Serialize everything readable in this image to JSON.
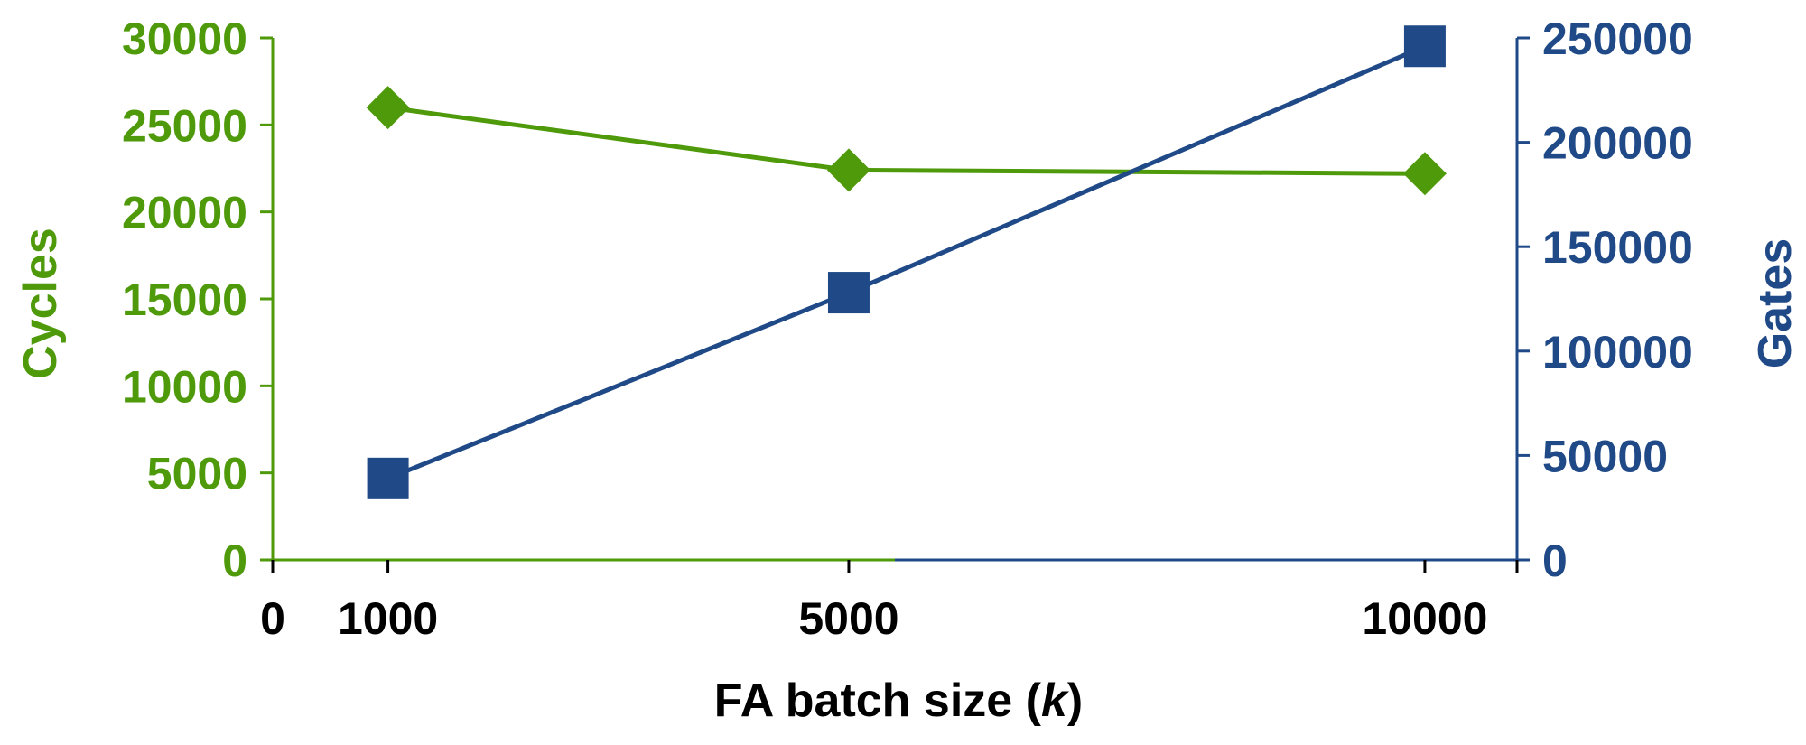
{
  "chart_data": {
    "type": "line",
    "title": "",
    "xlabel": "FA batch size (",
    "xlabel_var": "k",
    "xlabel_close": ")",
    "x_ticks": [
      "0",
      "1000",
      "5000",
      "10000"
    ],
    "x_tick_values": [
      0,
      1000,
      5000,
      10000
    ],
    "xlim": [
      0,
      10800
    ],
    "left_axis": {
      "label": "Cycles",
      "ylim": [
        0,
        30000
      ],
      "ticks": [
        "0",
        "5000",
        "10000",
        "15000",
        "20000",
        "25000",
        "30000"
      ],
      "tick_values": [
        0,
        5000,
        10000,
        15000,
        20000,
        25000,
        30000
      ],
      "color": "#4e9a0a"
    },
    "right_axis": {
      "label": "Gates",
      "ylim": [
        0,
        250000
      ],
      "ticks": [
        "0",
        "50000",
        "100000",
        "150000",
        "200000",
        "250000"
      ],
      "tick_values": [
        0,
        50000,
        100000,
        150000,
        200000,
        250000
      ],
      "color": "#204a87"
    },
    "x": [
      1000,
      5000,
      10000
    ],
    "series": [
      {
        "axis": "left",
        "marker": "diamond",
        "color": "#4e9a0a",
        "values": [
          26000,
          22400,
          22200
        ]
      },
      {
        "axis": "right",
        "marker": "square",
        "color": "#204a87",
        "values": [
          39000,
          128000,
          246000
        ]
      }
    ],
    "grid": false,
    "legend": "none"
  }
}
